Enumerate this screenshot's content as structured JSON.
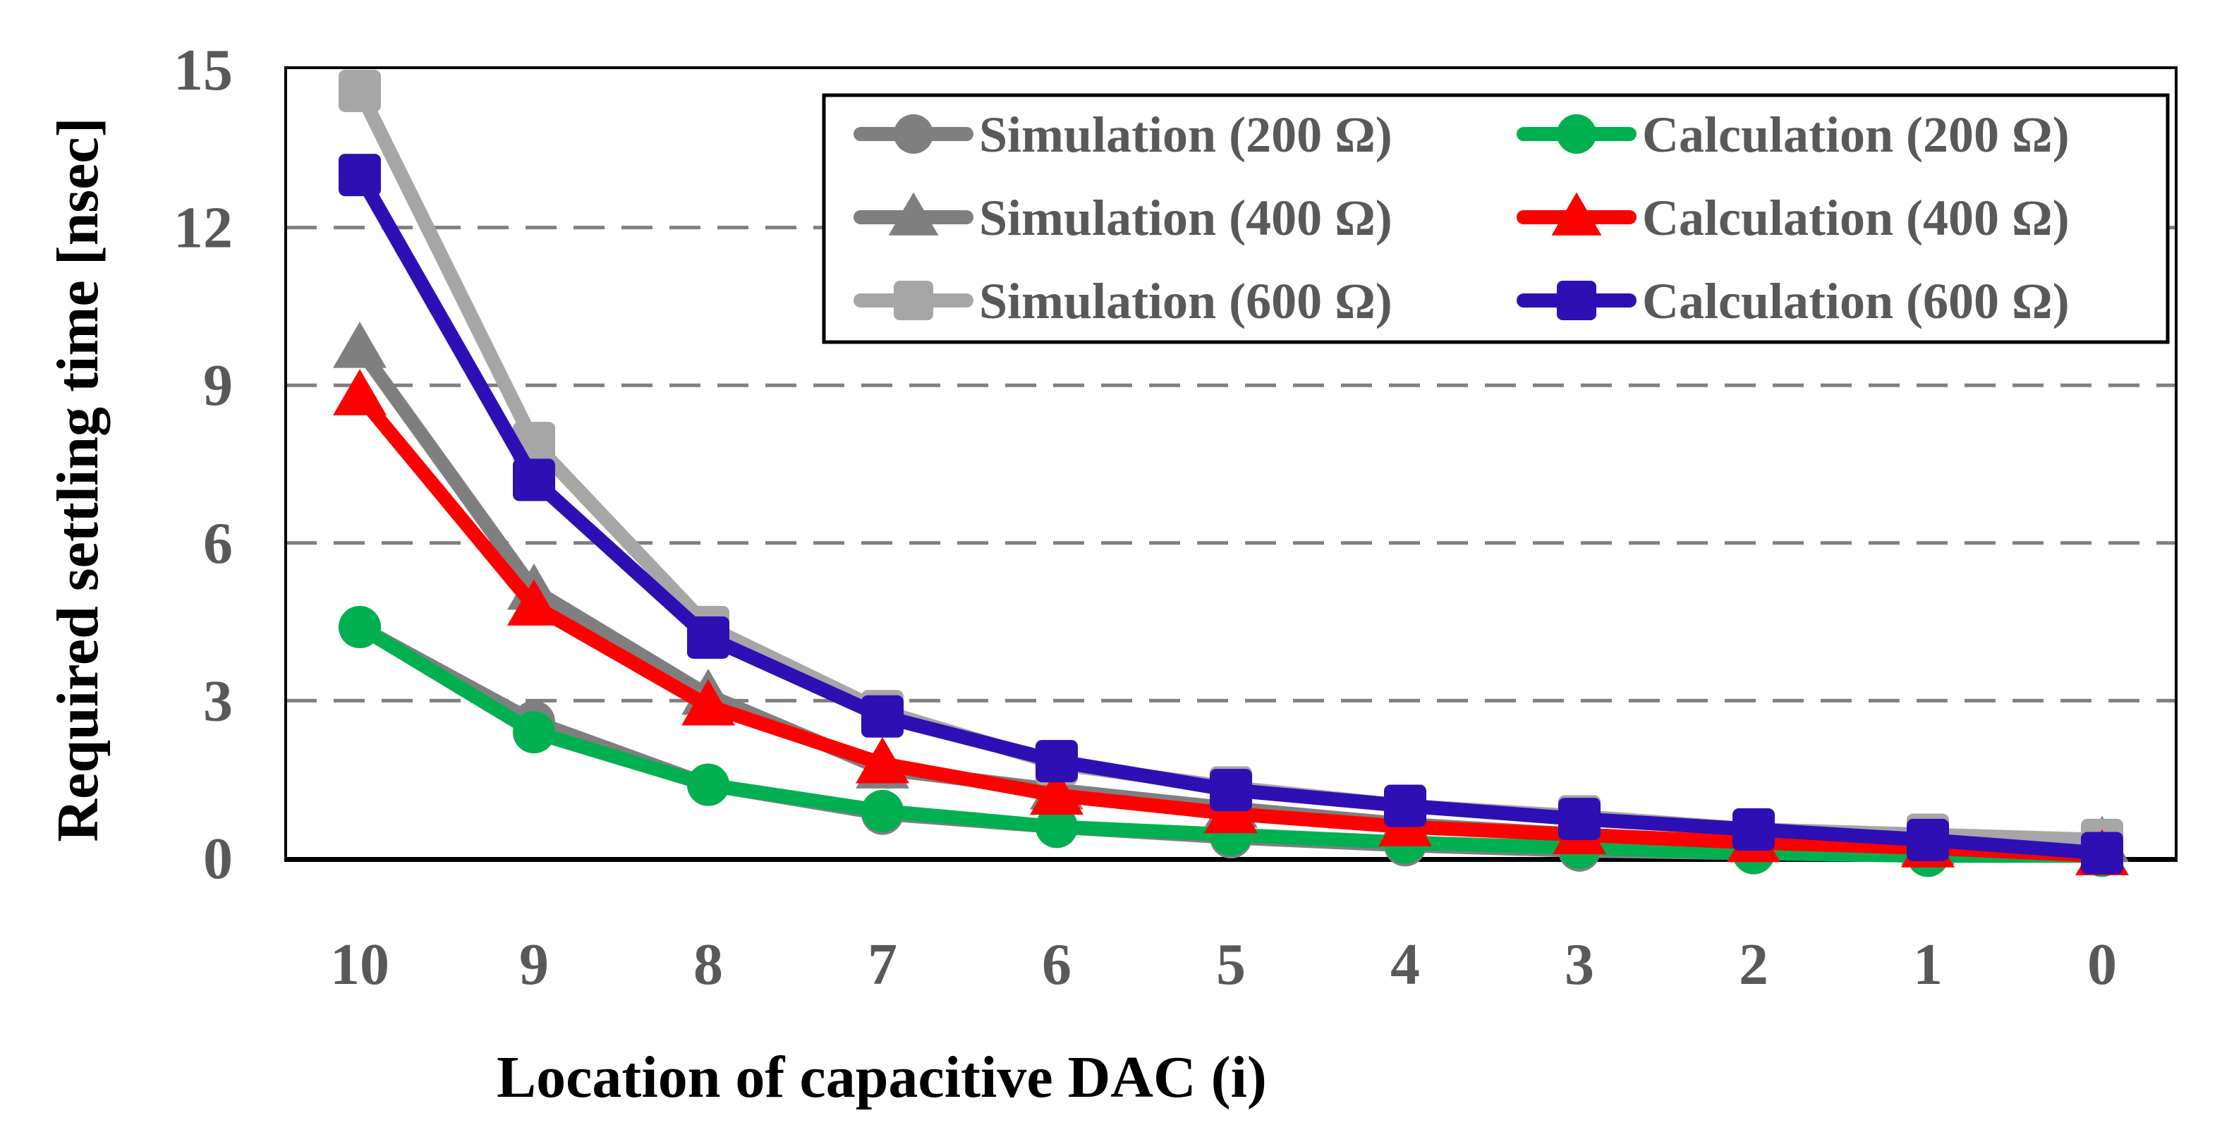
{
  "chart_data": {
    "type": "line",
    "title": "",
    "xlabel": "Location of capacitive DAC (i)",
    "ylabel": "Required settling time [nsec]",
    "categories": [
      "10",
      "9",
      "8",
      "7",
      "6",
      "5",
      "4",
      "3",
      "2",
      "1",
      "0"
    ],
    "ylim": [
      0,
      15
    ],
    "yticks": [
      0,
      3,
      6,
      9,
      12,
      15
    ],
    "grid": "horizontal dashed",
    "legend_position": "top-right",
    "series": [
      {
        "name": "Simulation (200 Ω)",
        "color": "#7f7f7f",
        "marker": "circle",
        "values": [
          4.4,
          2.6,
          1.4,
          0.85,
          0.6,
          0.4,
          0.25,
          0.15,
          0.1,
          0.05,
          0.1
        ]
      },
      {
        "name": "Simulation (400 Ω)",
        "color": "#7f7f7f",
        "marker": "triangle",
        "values": [
          9.7,
          5.1,
          3.1,
          1.7,
          1.3,
          0.95,
          0.65,
          0.45,
          0.3,
          0.25,
          0.3
        ]
      },
      {
        "name": "Simulation (600 Ω)",
        "color": "#a6a6a6",
        "marker": "square",
        "values": [
          14.6,
          7.9,
          4.4,
          2.8,
          1.8,
          1.35,
          1.0,
          0.8,
          0.55,
          0.45,
          0.35
        ]
      },
      {
        "name": "Calculation (200 Ω)",
        "color": "#00b050",
        "marker": "circle",
        "values": [
          4.4,
          2.4,
          1.4,
          0.9,
          0.6,
          0.45,
          0.3,
          0.2,
          0.1,
          0.05,
          0.05
        ]
      },
      {
        "name": "Calculation (400 Ω)",
        "color": "#ff0000",
        "marker": "triangle",
        "values": [
          8.8,
          4.8,
          2.9,
          1.8,
          1.2,
          0.85,
          0.6,
          0.45,
          0.3,
          0.2,
          0.05
        ]
      },
      {
        "name": "Calculation (600 Ω)",
        "color": "#2e0fb3",
        "marker": "square",
        "values": [
          13.0,
          7.2,
          4.2,
          2.7,
          1.85,
          1.3,
          1.0,
          0.75,
          0.55,
          0.35,
          0.1
        ]
      }
    ]
  }
}
